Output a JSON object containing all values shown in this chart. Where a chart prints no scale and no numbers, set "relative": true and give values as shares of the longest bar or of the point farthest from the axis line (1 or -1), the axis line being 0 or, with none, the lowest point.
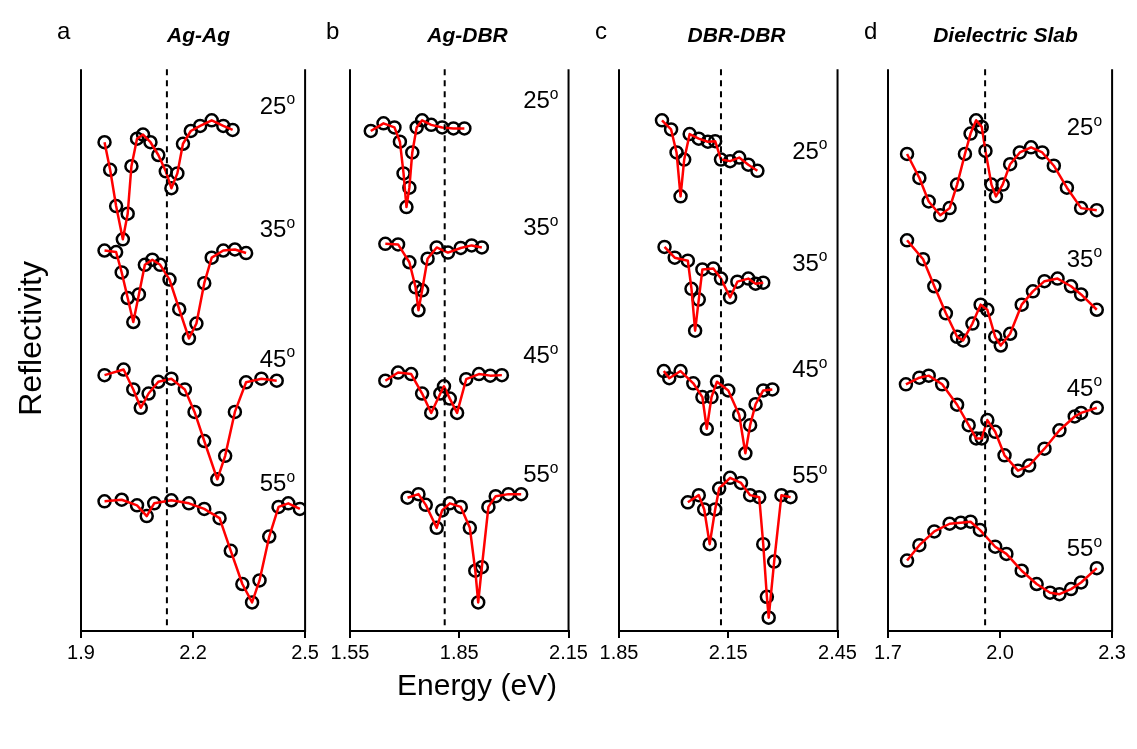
{
  "chart_data": [
    {
      "type": "scatter",
      "title": "Ag-Ag",
      "annotations": [
        "a"
      ],
      "ylabel": "Reflectivity",
      "relative": true,
      "xlim": [
        1.9,
        2.5
      ],
      "xticks": [
        1.9,
        2.2,
        2.5
      ],
      "marker": "circle",
      "ref_lines": [
        {
          "axis": "x",
          "value": 2.13,
          "line_style": "dashed",
          "color": "#000000"
        }
      ],
      "series": [
        {
          "name": "25$^{o}$",
          "type": "scatter",
          "color": "#000000",
          "x": [
            1.963,
            1.978,
            1.994,
            2.012,
            2.025,
            2.035,
            2.05,
            2.066,
            2.086,
            2.107,
            2.127,
            2.142,
            2.158,
            2.173,
            2.194,
            2.219,
            2.25,
            2.281,
            2.306
          ],
          "values": [
            0.957,
            0.903,
            0.832,
            0.767,
            0.817,
            0.91,
            0.964,
            0.972,
            0.957,
            0.932,
            0.9,
            0.867,
            0.896,
            0.954,
            0.979,
            0.989,
            1.0,
            0.989,
            0.981
          ]
        },
        {
          "type": "line",
          "marker": "none",
          "color": "#ff0000",
          "x": [
            1.963,
            1.978,
            1.994,
            2.012,
            2.025,
            2.035,
            2.05,
            2.066,
            2.086,
            2.107,
            2.127,
            2.142,
            2.158,
            2.173,
            2.194,
            2.219,
            2.25,
            2.281,
            2.306
          ],
          "values": [
            0.957,
            0.903,
            0.832,
            0.767,
            0.817,
            0.91,
            0.964,
            0.972,
            0.957,
            0.932,
            0.9,
            0.867,
            0.896,
            0.954,
            0.979,
            0.989,
            1.0,
            0.989,
            0.981
          ]
        },
        {
          "name": "35$^{o}$",
          "type": "scatter",
          "color": "#000000",
          "x": [
            1.963,
            1.994,
            2.009,
            2.025,
            2.04,
            2.055,
            2.071,
            2.091,
            2.112,
            2.137,
            2.163,
            2.189,
            2.209,
            2.23,
            2.25,
            2.281,
            2.312,
            2.342
          ],
          "values": [
            0.745,
            0.742,
            0.702,
            0.652,
            0.605,
            0.659,
            0.717,
            0.727,
            0.717,
            0.688,
            0.63,
            0.573,
            0.602,
            0.681,
            0.731,
            0.745,
            0.747,
            0.74
          ]
        },
        {
          "type": "line",
          "marker": "none",
          "color": "#ff0000",
          "x": [
            1.963,
            1.994,
            2.009,
            2.025,
            2.04,
            2.055,
            2.071,
            2.091,
            2.112,
            2.137,
            2.163,
            2.189,
            2.209,
            2.23,
            2.25,
            2.281,
            2.312,
            2.342
          ],
          "values": [
            0.745,
            0.742,
            0.702,
            0.652,
            0.605,
            0.659,
            0.717,
            0.727,
            0.717,
            0.688,
            0.63,
            0.573,
            0.602,
            0.681,
            0.731,
            0.745,
            0.747,
            0.74
          ]
        },
        {
          "name": "45$^{o}$",
          "type": "scatter",
          "color": "#000000",
          "x": [
            1.963,
            2.014,
            2.04,
            2.06,
            2.081,
            2.107,
            2.142,
            2.178,
            2.204,
            2.23,
            2.265,
            2.286,
            2.312,
            2.342,
            2.383,
            2.424
          ],
          "values": [
            0.501,
            0.512,
            0.473,
            0.437,
            0.465,
            0.488,
            0.494,
            0.473,
            0.429,
            0.372,
            0.297,
            0.343,
            0.429,
            0.487,
            0.494,
            0.49
          ]
        },
        {
          "type": "line",
          "marker": "none",
          "color": "#ff0000",
          "x": [
            1.963,
            2.014,
            2.04,
            2.06,
            2.081,
            2.107,
            2.142,
            2.178,
            2.204,
            2.23,
            2.265,
            2.286,
            2.312,
            2.342,
            2.383,
            2.424
          ],
          "values": [
            0.501,
            0.512,
            0.473,
            0.437,
            0.465,
            0.488,
            0.494,
            0.473,
            0.429,
            0.372,
            0.297,
            0.343,
            0.429,
            0.487,
            0.494,
            0.49
          ]
        },
        {
          "name": "55$^{o}$",
          "type": "scatter",
          "color": "#000000",
          "x": [
            1.963,
            2.009,
            2.05,
            2.076,
            2.096,
            2.142,
            2.189,
            2.23,
            2.271,
            2.301,
            2.332,
            2.358,
            2.378,
            2.404,
            2.429,
            2.455,
            2.486
          ],
          "values": [
            0.254,
            0.257,
            0.246,
            0.225,
            0.25,
            0.256,
            0.25,
            0.239,
            0.221,
            0.157,
            0.092,
            0.056,
            0.099,
            0.185,
            0.243,
            0.25,
            0.239
          ]
        },
        {
          "type": "line",
          "marker": "none",
          "color": "#ff0000",
          "x": [
            1.963,
            2.009,
            2.05,
            2.076,
            2.096,
            2.142,
            2.189,
            2.23,
            2.271,
            2.301,
            2.332,
            2.358,
            2.378,
            2.404,
            2.429,
            2.455,
            2.486
          ],
          "values": [
            0.254,
            0.257,
            0.246,
            0.225,
            0.25,
            0.256,
            0.25,
            0.239,
            0.221,
            0.157,
            0.092,
            0.056,
            0.099,
            0.185,
            0.243,
            0.25,
            0.239
          ]
        }
      ]
    },
    {
      "type": "scatter",
      "title": "Ag-DBR",
      "annotations": [
        "b"
      ],
      "xlabel": "Energy (eV)",
      "relative": true,
      "xlim": [
        1.55,
        2.15
      ],
      "xticks": [
        1.55,
        1.85,
        2.15
      ],
      "marker": "circle",
      "ref_lines": [
        {
          "axis": "x",
          "value": 1.81,
          "line_style": "dashed",
          "color": "#000000"
        }
      ],
      "series": [
        {
          "name": "25$^{o}$",
          "type": "scatter",
          "color": "#000000",
          "x": [
            1.607,
            1.642,
            1.672,
            1.687,
            1.697,
            1.705,
            1.713,
            1.721,
            1.733,
            1.748,
            1.773,
            1.803,
            1.834,
            1.864
          ],
          "values": [
            0.979,
            0.994,
            0.986,
            0.958,
            0.896,
            0.83,
            0.868,
            0.937,
            0.986,
            1.0,
            0.991,
            0.986,
            0.984,
            0.984
          ]
        },
        {
          "type": "line",
          "marker": "none",
          "color": "#ff0000",
          "x": [
            1.607,
            1.642,
            1.672,
            1.687,
            1.697,
            1.705,
            1.713,
            1.721,
            1.733,
            1.748,
            1.773,
            1.803,
            1.834,
            1.864
          ],
          "values": [
            0.979,
            0.994,
            0.986,
            0.958,
            0.896,
            0.83,
            0.868,
            0.937,
            0.986,
            1.0,
            0.991,
            0.986,
            0.984,
            0.984
          ]
        },
        {
          "name": "35$^{o}$",
          "type": "scatter",
          "color": "#000000",
          "x": [
            1.647,
            1.682,
            1.713,
            1.73,
            1.738,
            1.748,
            1.763,
            1.788,
            1.819,
            1.854,
            1.884,
            1.912
          ],
          "values": [
            0.758,
            0.757,
            0.722,
            0.673,
            0.628,
            0.667,
            0.729,
            0.751,
            0.741,
            0.75,
            0.755,
            0.751
          ]
        },
        {
          "type": "line",
          "marker": "none",
          "color": "#ff0000",
          "x": [
            1.647,
            1.682,
            1.713,
            1.73,
            1.738,
            1.748,
            1.763,
            1.788,
            1.819,
            1.854,
            1.884,
            1.912
          ],
          "values": [
            0.758,
            0.757,
            0.722,
            0.673,
            0.628,
            0.667,
            0.729,
            0.751,
            0.741,
            0.75,
            0.755,
            0.751
          ]
        },
        {
          "name": "45$^{o}$",
          "type": "scatter",
          "color": "#000000",
          "x": [
            1.647,
            1.682,
            1.718,
            1.748,
            1.773,
            1.798,
            1.808,
            1.824,
            1.844,
            1.869,
            1.904,
            1.935,
            1.967
          ],
          "values": [
            0.49,
            0.506,
            0.503,
            0.465,
            0.427,
            0.465,
            0.479,
            0.455,
            0.427,
            0.493,
            0.503,
            0.5,
            0.501
          ]
        },
        {
          "type": "line",
          "marker": "none",
          "color": "#ff0000",
          "x": [
            1.647,
            1.682,
            1.718,
            1.748,
            1.773,
            1.798,
            1.808,
            1.824,
            1.844,
            1.869,
            1.904,
            1.935,
            1.967
          ],
          "values": [
            0.49,
            0.506,
            0.503,
            0.465,
            0.427,
            0.465,
            0.479,
            0.455,
            0.427,
            0.493,
            0.503,
            0.5,
            0.501
          ]
        },
        {
          "name": "55$^{o}$",
          "type": "scatter",
          "color": "#000000",
          "x": [
            1.708,
            1.738,
            1.758,
            1.788,
            1.803,
            1.824,
            1.854,
            1.879,
            1.894,
            1.902,
            1.912,
            1.93,
            1.95,
            1.985,
            2.02
          ],
          "values": [
            0.261,
            0.268,
            0.247,
            0.202,
            0.236,
            0.25,
            0.243,
            0.202,
            0.118,
            0.056,
            0.125,
            0.243,
            0.264,
            0.268,
            0.268
          ]
        },
        {
          "type": "line",
          "marker": "none",
          "color": "#ff0000",
          "x": [
            1.708,
            1.738,
            1.758,
            1.788,
            1.803,
            1.824,
            1.854,
            1.879,
            1.894,
            1.902,
            1.912,
            1.93,
            1.95,
            1.985,
            2.02
          ],
          "values": [
            0.261,
            0.268,
            0.247,
            0.202,
            0.236,
            0.25,
            0.243,
            0.202,
            0.118,
            0.056,
            0.125,
            0.243,
            0.264,
            0.268,
            0.268
          ]
        }
      ]
    },
    {
      "type": "scatter",
      "title": "DBR-DBR",
      "annotations": [
        "c"
      ],
      "relative": true,
      "xlim": [
        1.85,
        2.45
      ],
      "xticks": [
        1.85,
        2.15,
        2.45
      ],
      "marker": "circle",
      "ref_lines": [
        {
          "axis": "x",
          "value": 2.13,
          "line_style": "dashed",
          "color": "#000000"
        }
      ],
      "series": [
        {
          "name": "25$^{o}$",
          "type": "scatter",
          "color": "#000000",
          "x": [
            1.968,
            1.993,
            2.008,
            2.019,
            2.029,
            2.044,
            2.069,
            2.094,
            2.114,
            2.13,
            2.155,
            2.18,
            2.205,
            2.23
          ],
          "values": [
            1.0,
            0.982,
            0.937,
            0.851,
            0.923,
            0.973,
            0.964,
            0.958,
            0.959,
            0.923,
            0.92,
            0.927,
            0.913,
            0.901
          ]
        },
        {
          "type": "line",
          "marker": "none",
          "color": "#ff0000",
          "x": [
            1.968,
            1.993,
            2.008,
            2.019,
            2.029,
            2.044,
            2.069,
            2.094,
            2.114,
            2.13,
            2.155,
            2.18,
            2.205,
            2.23
          ],
          "values": [
            1.0,
            0.982,
            0.937,
            0.851,
            0.923,
            0.973,
            0.964,
            0.958,
            0.959,
            0.923,
            0.92,
            0.927,
            0.913,
            0.901
          ]
        },
        {
          "name": "35$^{o}$",
          "type": "scatter",
          "color": "#000000",
          "x": [
            1.975,
            2.003,
            2.039,
            2.049,
            2.059,
            2.069,
            2.079,
            2.109,
            2.13,
            2.155,
            2.175,
            2.205,
            2.225,
            2.246
          ],
          "values": [
            0.752,
            0.731,
            0.725,
            0.67,
            0.588,
            0.649,
            0.708,
            0.71,
            0.69,
            0.653,
            0.684,
            0.69,
            0.68,
            0.682
          ]
        },
        {
          "type": "line",
          "marker": "none",
          "color": "#ff0000",
          "x": [
            1.975,
            2.003,
            2.039,
            2.049,
            2.059,
            2.069,
            2.079,
            2.109,
            2.13,
            2.155,
            2.175,
            2.205,
            2.225,
            2.246
          ],
          "values": [
            0.752,
            0.731,
            0.725,
            0.67,
            0.588,
            0.649,
            0.708,
            0.71,
            0.69,
            0.653,
            0.684,
            0.69,
            0.68,
            0.682
          ]
        },
        {
          "name": "45$^{o}$",
          "type": "scatter",
          "color": "#000000",
          "x": [
            1.973,
            1.988,
            2.019,
            2.054,
            2.079,
            2.091,
            2.104,
            2.119,
            2.15,
            2.18,
            2.197,
            2.21,
            2.225,
            2.246,
            2.271
          ],
          "values": [
            0.509,
            0.495,
            0.509,
            0.485,
            0.458,
            0.396,
            0.458,
            0.488,
            0.471,
            0.423,
            0.348,
            0.403,
            0.444,
            0.471,
            0.473
          ]
        },
        {
          "type": "line",
          "marker": "none",
          "color": "#ff0000",
          "x": [
            1.973,
            1.988,
            2.019,
            2.054,
            2.079,
            2.091,
            2.104,
            2.119,
            2.15,
            2.18,
            2.197,
            2.21,
            2.225,
            2.246,
            2.271
          ],
          "values": [
            0.509,
            0.495,
            0.509,
            0.485,
            0.458,
            0.396,
            0.458,
            0.488,
            0.471,
            0.423,
            0.348,
            0.403,
            0.444,
            0.471,
            0.473
          ]
        },
        {
          "name": "55$^{o}$",
          "type": "scatter",
          "color": "#000000",
          "x": [
            2.039,
            2.069,
            2.084,
            2.099,
            2.114,
            2.125,
            2.155,
            2.185,
            2.21,
            2.235,
            2.246,
            2.256,
            2.261,
            2.276,
            2.296,
            2.321
          ],
          "values": [
            0.252,
            0.266,
            0.238,
            0.17,
            0.238,
            0.279,
            0.3,
            0.29,
            0.266,
            0.262,
            0.17,
            0.067,
            0.026,
            0.136,
            0.266,
            0.262
          ]
        },
        {
          "type": "line",
          "marker": "none",
          "color": "#ff0000",
          "x": [
            2.039,
            2.069,
            2.084,
            2.099,
            2.114,
            2.125,
            2.155,
            2.185,
            2.21,
            2.235,
            2.246,
            2.256,
            2.261,
            2.276,
            2.296,
            2.321
          ],
          "values": [
            0.252,
            0.266,
            0.238,
            0.17,
            0.238,
            0.279,
            0.3,
            0.29,
            0.266,
            0.262,
            0.17,
            0.067,
            0.026,
            0.136,
            0.266,
            0.262
          ]
        }
      ]
    },
    {
      "type": "scatter",
      "title": "Dielectric Slab",
      "annotations": [
        "d"
      ],
      "relative": true,
      "xlim": [
        1.7,
        2.3
      ],
      "xticks": [
        1.7,
        {
          "value": 2,
          "label": "2.0"
        },
        2.3
      ],
      "marker": "circle",
      "ref_lines": [
        {
          "axis": "x",
          "value": 1.96,
          "line_style": "dashed",
          "color": "#000000"
        }
      ],
      "series": [
        {
          "name": "25$^{o}$",
          "type": "scatter",
          "color": "#000000",
          "x": [
            1.751,
            1.784,
            1.809,
            1.84,
            1.865,
            1.885,
            1.906,
            1.921,
            1.936,
            1.951,
            1.961,
            1.977,
            1.989,
            2.007,
            2.027,
            2.053,
            2.083,
            2.113,
            2.144,
            2.179,
            2.217,
            2.259
          ],
          "values": [
            0.934,
            0.887,
            0.841,
            0.814,
            0.828,
            0.874,
            0.934,
            0.974,
            1.0,
            0.987,
            0.94,
            0.874,
            0.851,
            0.874,
            0.914,
            0.937,
            0.947,
            0.937,
            0.911,
            0.868,
            0.828,
            0.824
          ]
        },
        {
          "type": "line",
          "marker": "none",
          "color": "#ff0000",
          "x": [
            1.751,
            1.784,
            1.809,
            1.84,
            1.865,
            1.885,
            1.906,
            1.921,
            1.936,
            1.951,
            1.961,
            1.977,
            1.989,
            2.007,
            2.027,
            2.053,
            2.083,
            2.113,
            2.144,
            2.179,
            2.217,
            2.259
          ],
          "values": [
            0.934,
            0.887,
            0.841,
            0.814,
            0.828,
            0.874,
            0.934,
            0.974,
            1.0,
            0.987,
            0.94,
            0.874,
            0.851,
            0.874,
            0.914,
            0.937,
            0.947,
            0.937,
            0.911,
            0.868,
            0.828,
            0.824
          ]
        },
        {
          "name": "35$^{o}$",
          "type": "scatter",
          "color": "#000000",
          "x": [
            1.751,
            1.794,
            1.824,
            1.855,
            1.885,
            1.901,
            1.926,
            1.948,
            1.966,
            1.987,
            2.002,
            2.027,
            2.058,
            2.088,
            2.119,
            2.154,
            2.19,
            2.217,
            2.259
          ],
          "values": [
            0.765,
            0.728,
            0.675,
            0.622,
            0.576,
            0.569,
            0.602,
            0.639,
            0.629,
            0.576,
            0.559,
            0.582,
            0.639,
            0.665,
            0.685,
            0.69,
            0.675,
            0.659,
            0.629
          ]
        },
        {
          "type": "line",
          "marker": "none",
          "color": "#ff0000",
          "x": [
            1.751,
            1.794,
            1.824,
            1.855,
            1.885,
            1.901,
            1.926,
            1.948,
            1.966,
            1.987,
            2.002,
            2.027,
            2.058,
            2.088,
            2.119,
            2.154,
            2.19,
            2.217,
            2.259
          ],
          "values": [
            0.765,
            0.728,
            0.675,
            0.622,
            0.576,
            0.569,
            0.602,
            0.639,
            0.629,
            0.576,
            0.559,
            0.582,
            0.639,
            0.665,
            0.685,
            0.69,
            0.675,
            0.659,
            0.629
          ]
        },
        {
          "name": "45$^{o}$",
          "type": "scatter",
          "color": "#000000",
          "x": [
            1.748,
            1.784,
            1.809,
            1.845,
            1.885,
            1.916,
            1.936,
            1.951,
            1.966,
            1.987,
            2.012,
            2.048,
            2.078,
            2.119,
            2.159,
            2.2,
            2.217,
            2.259
          ],
          "values": [
            0.483,
            0.496,
            0.5,
            0.483,
            0.443,
            0.403,
            0.377,
            0.377,
            0.413,
            0.39,
            0.344,
            0.314,
            0.324,
            0.357,
            0.393,
            0.42,
            0.427,
            0.437
          ]
        },
        {
          "type": "line",
          "marker": "none",
          "color": "#ff0000",
          "x": [
            1.748,
            1.784,
            1.809,
            1.845,
            1.885,
            1.916,
            1.936,
            1.951,
            1.966,
            1.987,
            2.012,
            2.048,
            2.078,
            2.119,
            2.159,
            2.2,
            2.217,
            2.259
          ],
          "values": [
            0.483,
            0.496,
            0.5,
            0.483,
            0.443,
            0.403,
            0.377,
            0.377,
            0.413,
            0.39,
            0.344,
            0.314,
            0.324,
            0.357,
            0.393,
            0.42,
            0.427,
            0.437
          ]
        },
        {
          "name": "55$^{o}$",
          "type": "scatter",
          "color": "#000000",
          "x": [
            1.751,
            1.784,
            1.824,
            1.865,
            1.895,
            1.921,
            1.946,
            1.987,
            2.017,
            2.058,
            2.098,
            2.134,
            2.159,
            2.19,
            2.217,
            2.259
          ],
          "values": [
            0.138,
            0.168,
            0.195,
            0.21,
            0.212,
            0.214,
            0.198,
            0.165,
            0.151,
            0.118,
            0.092,
            0.075,
            0.072,
            0.082,
            0.095,
            0.123
          ]
        },
        {
          "type": "line",
          "marker": "none",
          "color": "#ff0000",
          "x": [
            1.751,
            1.784,
            1.824,
            1.865,
            1.895,
            1.921,
            1.946,
            1.987,
            2.017,
            2.058,
            2.098,
            2.134,
            2.159,
            2.19,
            2.217,
            2.259
          ],
          "values": [
            0.138,
            0.168,
            0.195,
            0.21,
            0.212,
            0.214,
            0.198,
            0.165,
            0.151,
            0.118,
            0.092,
            0.075,
            0.072,
            0.082,
            0.095,
            0.123
          ]
        }
      ]
    }
  ]
}
